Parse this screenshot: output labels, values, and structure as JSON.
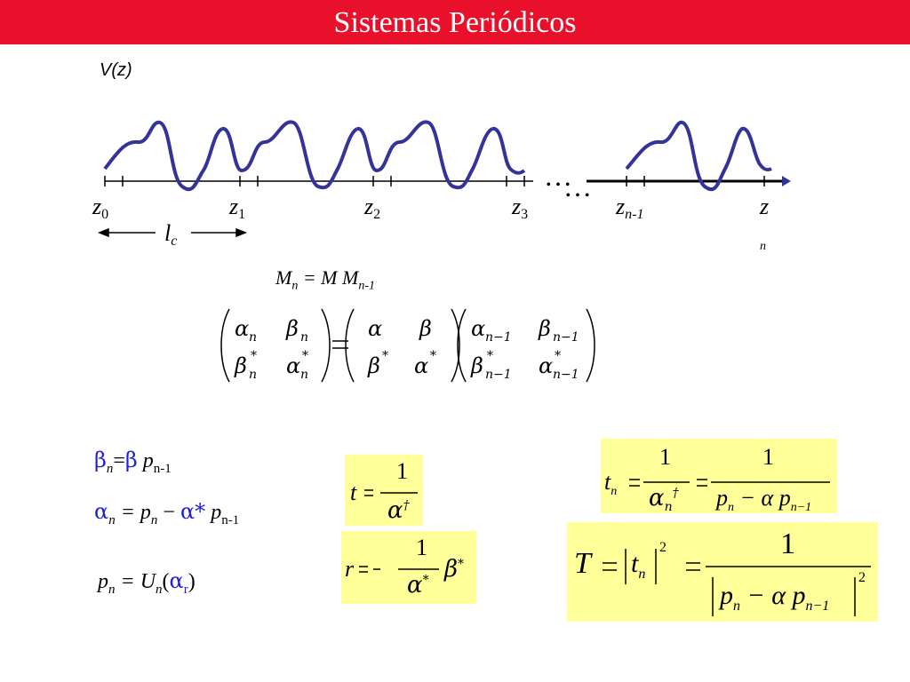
{
  "header": {
    "title": "Sistemas Periódicos"
  },
  "plot": {
    "y_label": "V(z)",
    "z_labels": [
      {
        "base": "z",
        "sub": "0"
      },
      {
        "base": "z",
        "sub": "1"
      },
      {
        "base": "z",
        "sub": "2"
      },
      {
        "base": "z",
        "sub": "3"
      },
      {
        "base": "z",
        "sub": "n-1"
      },
      {
        "base": "z",
        "sub": "n"
      }
    ],
    "period_label": {
      "base": "l",
      "sub": "c"
    },
    "ellipsis": "…"
  },
  "equations": {
    "mn_relation": {
      "lhs": "M",
      "lhs_sub": "n",
      "eq": " = M M",
      "rhs_sub": "n-1"
    },
    "beta_n": {
      "a": "β",
      "a_sub": "n",
      "b": "=",
      "c": "β",
      "d": " p",
      "d_sub": "n-1"
    },
    "alpha_n": {
      "a": "α",
      "a_sub": "n",
      "b": " = p",
      "b_sub": "n",
      "c": " − ",
      "d": "α*",
      "e": " p",
      "e_sub": "n-1"
    },
    "p_n": {
      "a": "p",
      "a_sub": "n",
      "b": " = U",
      "b_sub": "n",
      "c": "(",
      "d": "α",
      "d_sub": "r",
      "e": ")"
    }
  },
  "boxes": {
    "t": {
      "lhs": "t",
      "num": "1",
      "den": "α",
      "den_sup": "†"
    },
    "r": {
      "lhs": "r",
      "minus": "−",
      "num": "1",
      "den": "α",
      "den_sup": "*",
      "tail": "β",
      "tail_sup": "*"
    },
    "tn": {
      "lhs": "t",
      "lhs_sub": "n",
      "num1": "1",
      "den1": "α",
      "den1_sub": "n",
      "den1_sup": "†",
      "num2": "1",
      "den2": "p",
      "den2_sub": "n",
      "den2_mid": " − α p",
      "den2_sub2": "n−1"
    },
    "T": {
      "lhs": "T",
      "mid": "t",
      "mid_sub": "n",
      "exp": "2",
      "num": "1",
      "den": "p",
      "den_sub": "n",
      "den_mid": " − α p",
      "den_sub2": "n−1",
      "den_exp": "2"
    }
  },
  "colors": {
    "title_bar": "#e8102a",
    "curve": "#333399",
    "box": "#ffff99",
    "greek_blue": "#1f1fd8"
  }
}
